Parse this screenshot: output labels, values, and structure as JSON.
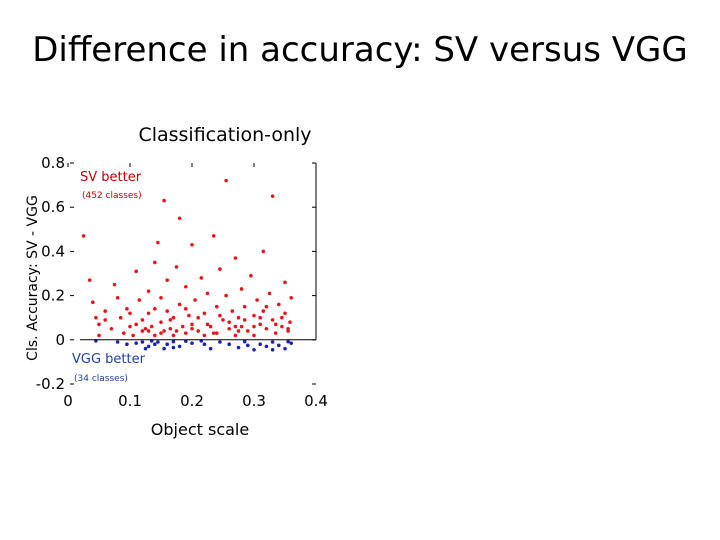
{
  "page": {
    "title": "Difference in accuracy: SV versus VGG"
  },
  "chart_data": {
    "type": "scatter",
    "title": "Classification-only",
    "xlabel": "Object scale",
    "ylabel": "Cls. Accuracy: SV - VGG",
    "xlim": [
      0,
      0.4
    ],
    "ylim": [
      -0.2,
      0.8
    ],
    "x_ticks": [
      "0",
      "0.1",
      "0.2",
      "0.3",
      "0.4"
    ],
    "y_ticks": [
      "-0.2",
      "0",
      "0.2",
      "0.4",
      "0.6",
      "0.8"
    ],
    "annotations": {
      "sv_better": "SV better",
      "sv_count": "(452 classes)",
      "vgg_better": "VGG better",
      "vgg_count": "(34 classes)"
    },
    "colors": {
      "sv": "#e8141c",
      "vgg": "#1a22b8",
      "axis": "#000000"
    },
    "series": [
      {
        "key": "sv",
        "points": [
          [
            0.025,
            0.47
          ],
          [
            0.035,
            0.27
          ],
          [
            0.04,
            0.17
          ],
          [
            0.045,
            0.1
          ],
          [
            0.05,
            0.07
          ],
          [
            0.05,
            0.02
          ],
          [
            0.06,
            0.13
          ],
          [
            0.07,
            0.05
          ],
          [
            0.075,
            0.25
          ],
          [
            0.085,
            0.1
          ],
          [
            0.09,
            0.03
          ],
          [
            0.095,
            0.14
          ],
          [
            0.1,
            0.06
          ],
          [
            0.105,
            0.02
          ],
          [
            0.11,
            0.31
          ],
          [
            0.115,
            0.18
          ],
          [
            0.12,
            0.09
          ],
          [
            0.12,
            0.04
          ],
          [
            0.13,
            0.22
          ],
          [
            0.13,
            0.12
          ],
          [
            0.135,
            0.06
          ],
          [
            0.14,
            0.02
          ],
          [
            0.14,
            0.35
          ],
          [
            0.145,
            0.44
          ],
          [
            0.15,
            0.19
          ],
          [
            0.15,
            0.08
          ],
          [
            0.155,
            0.04
          ],
          [
            0.155,
            0.63
          ],
          [
            0.16,
            0.27
          ],
          [
            0.16,
            0.13
          ],
          [
            0.165,
            0.05
          ],
          [
            0.17,
            0.1
          ],
          [
            0.17,
            0.02
          ],
          [
            0.175,
            0.33
          ],
          [
            0.18,
            0.55
          ],
          [
            0.18,
            0.16
          ],
          [
            0.185,
            0.06
          ],
          [
            0.19,
            0.24
          ],
          [
            0.19,
            0.03
          ],
          [
            0.195,
            0.11
          ],
          [
            0.2,
            0.43
          ],
          [
            0.2,
            0.07
          ],
          [
            0.205,
            0.18
          ],
          [
            0.21,
            0.04
          ],
          [
            0.215,
            0.28
          ],
          [
            0.22,
            0.12
          ],
          [
            0.22,
            0.02
          ],
          [
            0.225,
            0.21
          ],
          [
            0.23,
            0.06
          ],
          [
            0.235,
            0.47
          ],
          [
            0.24,
            0.15
          ],
          [
            0.24,
            0.03
          ],
          [
            0.245,
            0.32
          ],
          [
            0.25,
            0.09
          ],
          [
            0.255,
            0.72
          ],
          [
            0.255,
            0.2
          ],
          [
            0.26,
            0.05
          ],
          [
            0.265,
            0.13
          ],
          [
            0.27,
            0.37
          ],
          [
            0.27,
            0.02
          ],
          [
            0.275,
            0.1
          ],
          [
            0.28,
            0.23
          ],
          [
            0.28,
            0.06
          ],
          [
            0.285,
            0.15
          ],
          [
            0.29,
            0.04
          ],
          [
            0.295,
            0.29
          ],
          [
            0.3,
            0.11
          ],
          [
            0.3,
            0.02
          ],
          [
            0.305,
            0.18
          ],
          [
            0.31,
            0.07
          ],
          [
            0.315,
            0.4
          ],
          [
            0.315,
            0.13
          ],
          [
            0.32,
            0.05
          ],
          [
            0.325,
            0.21
          ],
          [
            0.33,
            0.65
          ],
          [
            0.33,
            0.09
          ],
          [
            0.335,
            0.03
          ],
          [
            0.34,
            0.16
          ],
          [
            0.345,
            0.06
          ],
          [
            0.35,
            0.26
          ],
          [
            0.35,
            0.12
          ],
          [
            0.355,
            0.04
          ],
          [
            0.358,
            0.08
          ],
          [
            0.36,
            0.19
          ],
          [
            0.06,
            0.09
          ],
          [
            0.08,
            0.19
          ],
          [
            0.1,
            0.12
          ],
          [
            0.11,
            0.07
          ],
          [
            0.125,
            0.05
          ],
          [
            0.14,
            0.14
          ],
          [
            0.15,
            0.03
          ],
          [
            0.165,
            0.09
          ],
          [
            0.175,
            0.04
          ],
          [
            0.19,
            0.14
          ],
          [
            0.2,
            0.05
          ],
          [
            0.21,
            0.1
          ],
          [
            0.225,
            0.07
          ],
          [
            0.235,
            0.03
          ],
          [
            0.245,
            0.11
          ],
          [
            0.26,
            0.08
          ],
          [
            0.275,
            0.04
          ],
          [
            0.285,
            0.09
          ],
          [
            0.3,
            0.06
          ],
          [
            0.31,
            0.1
          ],
          [
            0.32,
            0.15
          ],
          [
            0.335,
            0.07
          ],
          [
            0.345,
            0.1
          ],
          [
            0.355,
            0.05
          ],
          [
            0.13,
            0.04
          ],
          [
            0.27,
            0.06
          ]
        ]
      },
      {
        "key": "vgg",
        "points": [
          [
            0.045,
            -0.005
          ],
          [
            0.08,
            -0.01
          ],
          [
            0.095,
            -0.02
          ],
          [
            0.11,
            -0.015
          ],
          [
            0.125,
            -0.04
          ],
          [
            0.13,
            -0.03
          ],
          [
            0.135,
            -0.005
          ],
          [
            0.14,
            -0.02
          ],
          [
            0.145,
            -0.01
          ],
          [
            0.155,
            -0.04
          ],
          [
            0.16,
            -0.02
          ],
          [
            0.17,
            -0.008
          ],
          [
            0.18,
            -0.03
          ],
          [
            0.19,
            -0.006
          ],
          [
            0.2,
            -0.015
          ],
          [
            0.215,
            -0.005
          ],
          [
            0.23,
            -0.04
          ],
          [
            0.245,
            -0.01
          ],
          [
            0.26,
            -0.02
          ],
          [
            0.275,
            -0.035
          ],
          [
            0.285,
            -0.008
          ],
          [
            0.3,
            -0.045
          ],
          [
            0.31,
            -0.02
          ],
          [
            0.32,
            -0.03
          ],
          [
            0.33,
            -0.01
          ],
          [
            0.34,
            -0.025
          ],
          [
            0.35,
            -0.04
          ],
          [
            0.355,
            -0.008
          ],
          [
            0.36,
            -0.015
          ],
          [
            0.17,
            -0.035
          ],
          [
            0.22,
            -0.02
          ],
          [
            0.29,
            -0.025
          ],
          [
            0.12,
            -0.01
          ],
          [
            0.33,
            -0.045
          ]
        ]
      }
    ]
  }
}
